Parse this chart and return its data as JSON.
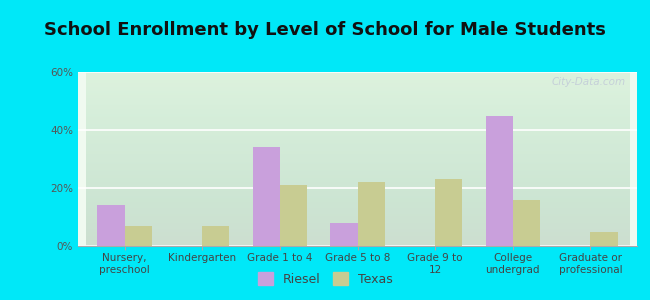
{
  "title": "School Enrollment by Level of School for Male Students",
  "categories": [
    "Nursery,\npreschool",
    "Kindergarten",
    "Grade 1 to 4",
    "Grade 5 to 8",
    "Grade 9 to\n12",
    "College\nundergrad",
    "Graduate or\nprofessional"
  ],
  "riesel": [
    14,
    0,
    34,
    8,
    0,
    45,
    0
  ],
  "texas": [
    7,
    7,
    21,
    22,
    23,
    16,
    5
  ],
  "riesel_color": "#c9a0dc",
  "texas_color": "#c8cc92",
  "background_outer": "#00e8f8",
  "background_inner": "#e8f5e0",
  "ylim": [
    0,
    60
  ],
  "yticks": [
    0,
    20,
    40,
    60
  ],
  "ytick_labels": [
    "0%",
    "20%",
    "40%",
    "60%"
  ],
  "bar_width": 0.35,
  "title_fontsize": 13,
  "tick_fontsize": 7.5,
  "legend_fontsize": 9,
  "watermark": "City-Data.com"
}
